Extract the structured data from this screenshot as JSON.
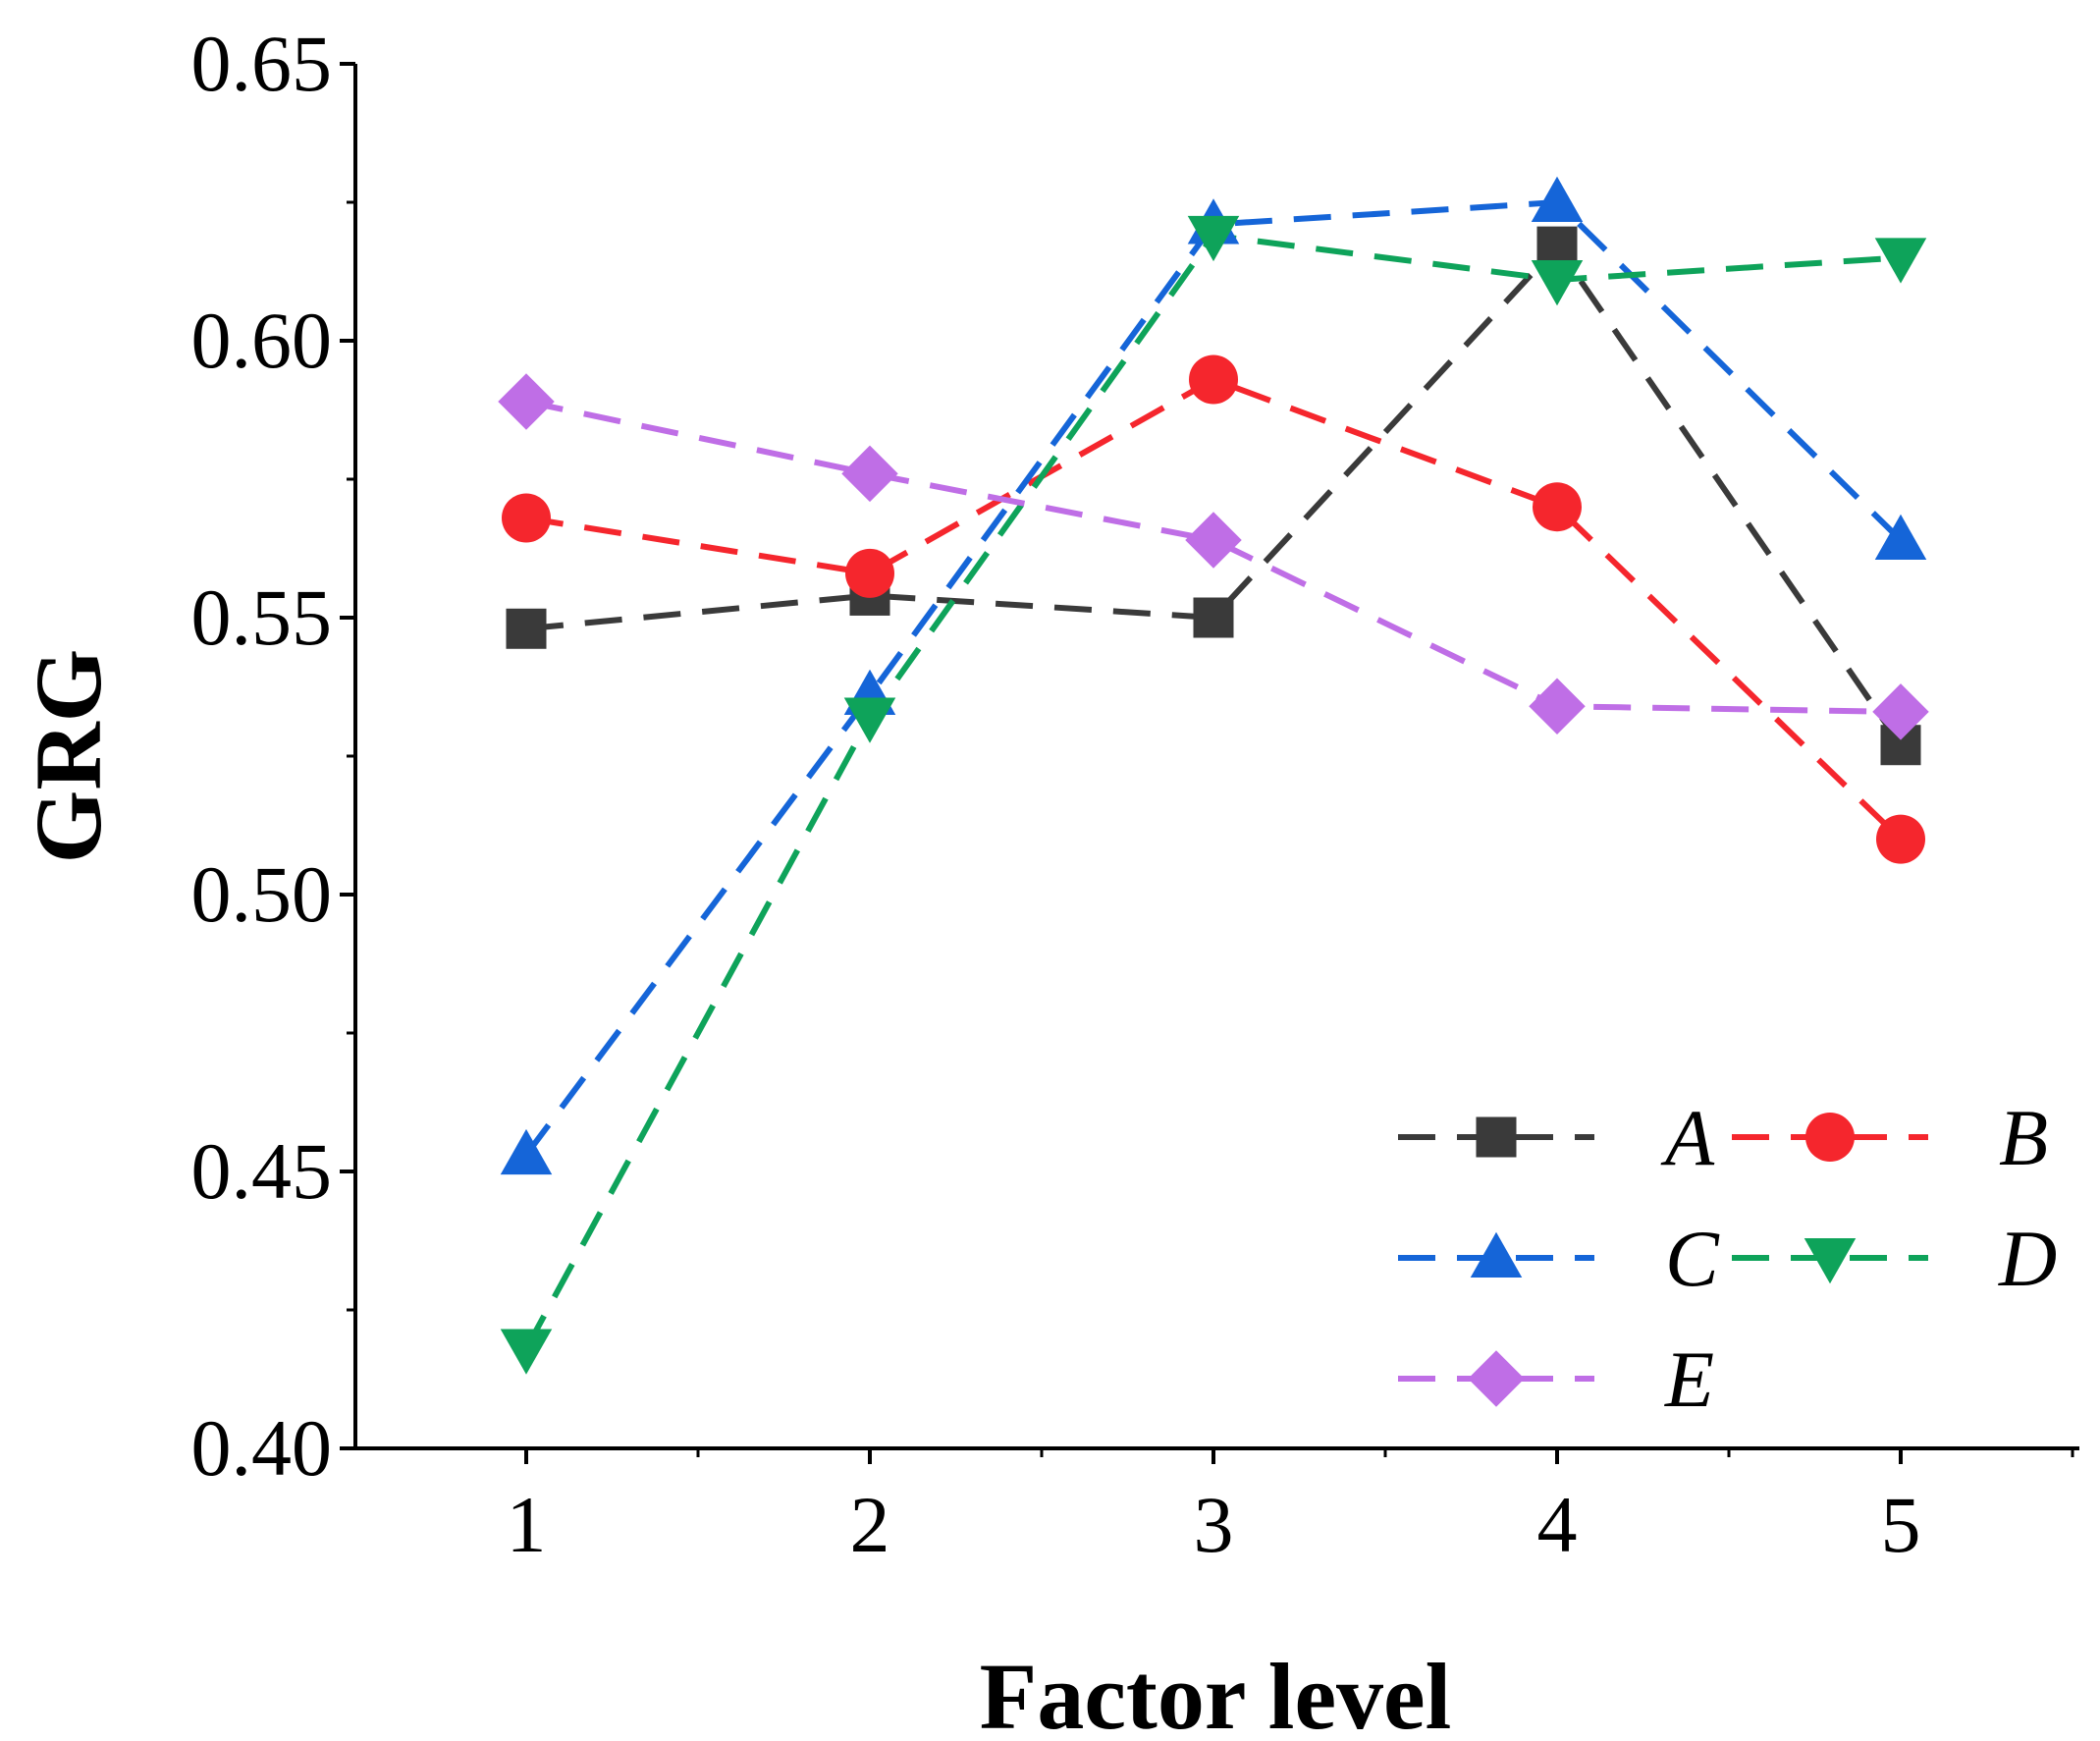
{
  "chart_data": {
    "type": "line",
    "title": "",
    "xlabel": "Factor level",
    "ylabel": "GRG",
    "categories": [
      1,
      2,
      3,
      4,
      5
    ],
    "x_tick_labels": [
      "1",
      "2",
      "3",
      "4",
      "5"
    ],
    "ylim": [
      0.4,
      0.65
    ],
    "y_ticks": [
      0.4,
      0.45,
      0.5,
      0.55,
      0.6,
      0.65
    ],
    "y_tick_labels": [
      "0.40",
      "0.45",
      "0.50",
      "0.55",
      "0.60",
      "0.65"
    ],
    "grid": false,
    "legend_position": "bottom-right",
    "series": [
      {
        "name": "A",
        "color": "#3a3a3a",
        "marker": "square",
        "values": [
          0.548,
          0.554,
          0.55,
          0.617,
          0.527
        ]
      },
      {
        "name": "B",
        "color": "#f5262d",
        "marker": "circle",
        "values": [
          0.568,
          0.558,
          0.593,
          0.57,
          0.51
        ]
      },
      {
        "name": "C",
        "color": "#1565d8",
        "marker": "triangle-up",
        "values": [
          0.453,
          0.536,
          0.621,
          0.625,
          0.564
        ]
      },
      {
        "name": "D",
        "color": "#0ea35a",
        "marker": "triangle-down",
        "values": [
          0.418,
          0.532,
          0.619,
          0.611,
          0.615
        ]
      },
      {
        "name": "E",
        "color": "#bf6ee6",
        "marker": "diamond",
        "values": [
          0.589,
          0.576,
          0.564,
          0.534,
          0.533
        ]
      }
    ]
  }
}
